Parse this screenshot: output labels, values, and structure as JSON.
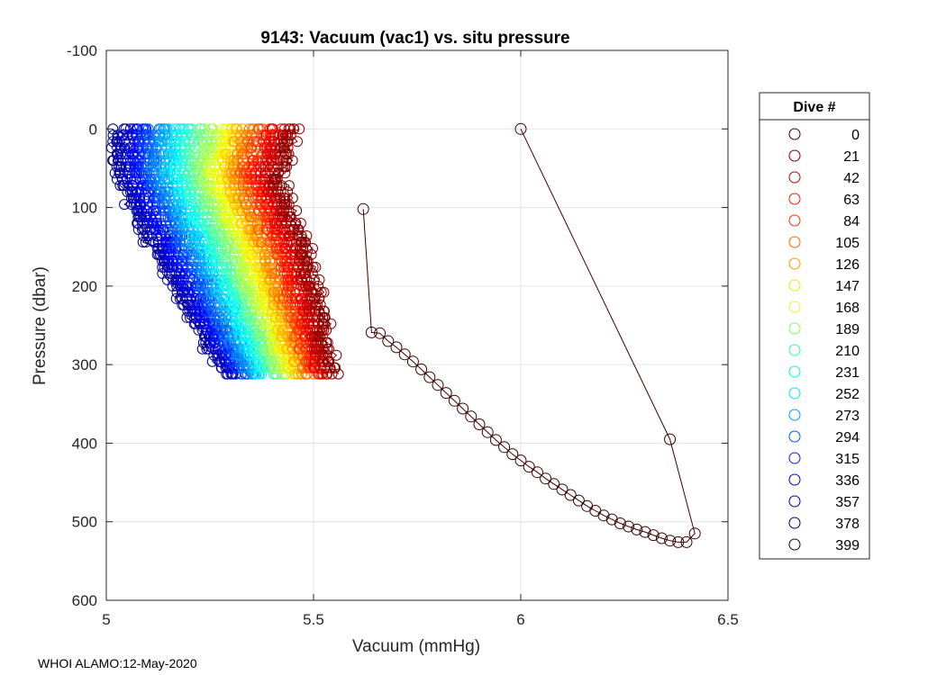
{
  "chart_data": {
    "type": "scatter",
    "title": "9143: Vacuum (vac1) vs. situ pressure",
    "xlabel": "Vacuum (mmHg)",
    "ylabel": "Pressure (dbar)",
    "xlim": [
      5,
      6.5
    ],
    "ylim": [
      -100,
      600
    ],
    "y_reversed": true,
    "grid": true,
    "xticks": [
      5,
      5.5,
      6,
      6.5
    ],
    "xtick_labels": [
      "5",
      "5.5",
      "6",
      "6.5"
    ],
    "yticks": [
      -100,
      0,
      100,
      200,
      300,
      400,
      500,
      600
    ],
    "ytick_labels": [
      "-100",
      "0",
      "100",
      "200",
      "300",
      "400",
      "500",
      "600"
    ],
    "legend": {
      "title": "Dive #",
      "position": "right",
      "entries": [
        "0",
        "21",
        "42",
        "63",
        "84",
        "105",
        "126",
        "147",
        "168",
        "189",
        "210",
        "231",
        "252",
        "273",
        "294",
        "315",
        "336",
        "357",
        "378",
        "399"
      ],
      "colors": [
        "#3a0000",
        "#7a0000",
        "#c00000",
        "#ff1a00",
        "#ff3300",
        "#ff6600",
        "#ff9900",
        "#ffdd00",
        "#d4ff2a",
        "#7fff55",
        "#2aff9f",
        "#00ffcc",
        "#00e6ff",
        "#0099ff",
        "#0055ff",
        "#0022ee",
        "#0000d0",
        "#00009a",
        "#000066",
        "#000044"
      ]
    },
    "series": [
      {
        "name": "0",
        "x": [
          6.0,
          6.36,
          6.42,
          6.4,
          6.38,
          6.36,
          6.34,
          6.32,
          6.3,
          6.28,
          6.26,
          6.24,
          6.22,
          6.2,
          6.18,
          6.16,
          6.14,
          6.12,
          6.1,
          6.08,
          6.06,
          6.04,
          6.02,
          6.0,
          5.98,
          5.96,
          5.94,
          5.92,
          5.9,
          5.88,
          5.86,
          5.84,
          5.82,
          5.8,
          5.78,
          5.76,
          5.74,
          5.72,
          5.7,
          5.68,
          5.66,
          5.64,
          5.62
        ],
        "y": [
          0,
          395,
          515,
          526,
          526,
          524,
          521,
          517,
          513,
          510,
          506,
          502,
          497,
          492,
          486,
          480,
          473,
          466,
          459,
          452,
          445,
          437,
          430,
          422,
          414,
          405,
          396,
          386,
          376,
          366,
          356,
          346,
          336,
          326,
          316,
          306,
          296,
          287,
          278,
          270,
          260,
          259,
          102
        ]
      }
    ],
    "profile_envelope": {
      "dive_range": [
        21,
        399
      ],
      "x_min_near_surface": 5.02,
      "x_max_near_surface": 5.46,
      "x_min_at_300": 5.27,
      "x_max_at_300": 5.55,
      "max_pressure": 320
    }
  },
  "footer_text": "WHOI ALAMO:12-May-2020"
}
